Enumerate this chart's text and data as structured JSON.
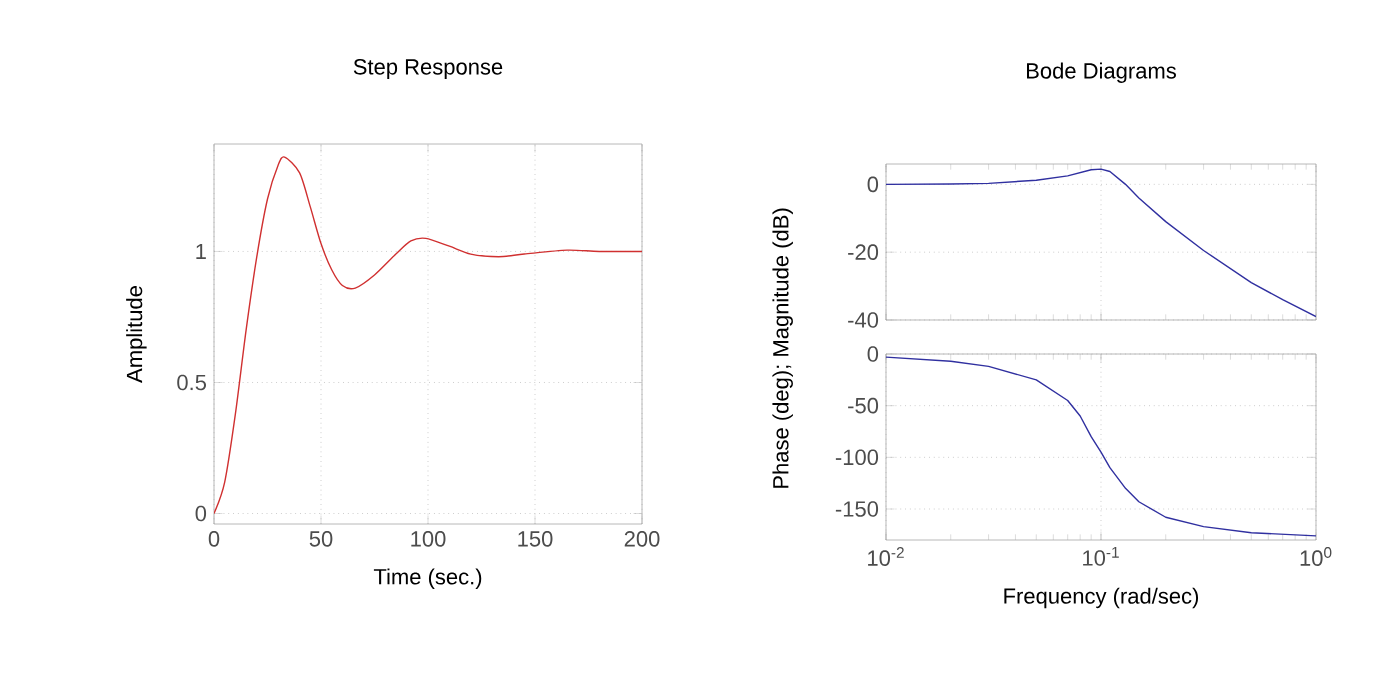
{
  "chart_data": [
    {
      "type": "line",
      "title": "Step Response",
      "xlabel": "Time (sec.)",
      "ylabel": "Amplitude",
      "x": [
        0,
        5,
        10,
        15,
        20,
        25,
        30,
        33,
        40,
        45,
        50,
        55,
        60,
        66,
        75,
        85,
        92,
        99,
        110,
        120,
        133,
        145,
        165,
        180,
        200
      ],
      "series": [
        {
          "color": "#d03030",
          "values": [
            0,
            0.12,
            0.38,
            0.7,
            0.98,
            1.2,
            1.33,
            1.36,
            1.3,
            1.17,
            1.03,
            0.93,
            0.87,
            0.86,
            0.91,
            0.99,
            1.04,
            1.05,
            1.02,
            0.99,
            0.98,
            0.99,
            1.005,
            1.0,
            1.0
          ]
        }
      ],
      "xlim": [
        0,
        200
      ],
      "ylim": [
        -0.04,
        1.41
      ],
      "xticks": [
        0,
        50,
        100,
        150,
        200
      ],
      "yticks": [
        0,
        0.5,
        1
      ],
      "grid": true
    },
    {
      "type": "line",
      "title": "Bode Diagrams",
      "log": "x",
      "x": [
        0.01,
        0.02,
        0.03,
        0.05,
        0.07,
        0.09,
        0.1,
        0.11,
        0.13,
        0.15,
        0.2,
        0.3,
        0.5,
        0.7,
        1.0
      ],
      "series": [
        {
          "color": "#3030a0",
          "values": [
            0,
            0.1,
            0.3,
            1.2,
            2.5,
            4.3,
            4.5,
            3.8,
            0,
            -4,
            -11,
            -19.5,
            -29,
            -34,
            -39
          ]
        }
      ],
      "xlim": [
        0.01,
        1
      ],
      "ylim": [
        -40,
        6
      ],
      "xticks": [
        {
          "value": 0.01,
          "label": null
        },
        {
          "value": 0.1,
          "label": null
        },
        {
          "value": 1,
          "label": null
        }
      ],
      "yticks": [
        -40,
        -20,
        0
      ],
      "grid": true,
      "tick_labels": "y"
    },
    {
      "type": "line",
      "xlabel": "Frequency (rad/sec)",
      "ylabel": "Phase (deg); Magnitude (dB)",
      "log": "x",
      "x": [
        0.01,
        0.02,
        0.03,
        0.05,
        0.07,
        0.08,
        0.09,
        0.1,
        0.11,
        0.13,
        0.15,
        0.2,
        0.3,
        0.5,
        1.0
      ],
      "series": [
        {
          "color": "#3030a0",
          "values": [
            -3,
            -7,
            -12,
            -25,
            -45,
            -60,
            -80,
            -95,
            -110,
            -130,
            -143,
            -158,
            -167,
            -173,
            -176
          ]
        }
      ],
      "xlim": [
        0.01,
        1
      ],
      "ylim": [
        -180,
        0
      ],
      "xticks": [
        {
          "value": 0.01,
          "label": "10$^{-2}$"
        },
        {
          "value": 0.1,
          "label": "10$^{-1}$"
        },
        {
          "value": 1,
          "label": "10$^{0}$"
        }
      ],
      "yticks": [
        -150,
        -100,
        -50,
        0
      ],
      "grid": true
    }
  ]
}
